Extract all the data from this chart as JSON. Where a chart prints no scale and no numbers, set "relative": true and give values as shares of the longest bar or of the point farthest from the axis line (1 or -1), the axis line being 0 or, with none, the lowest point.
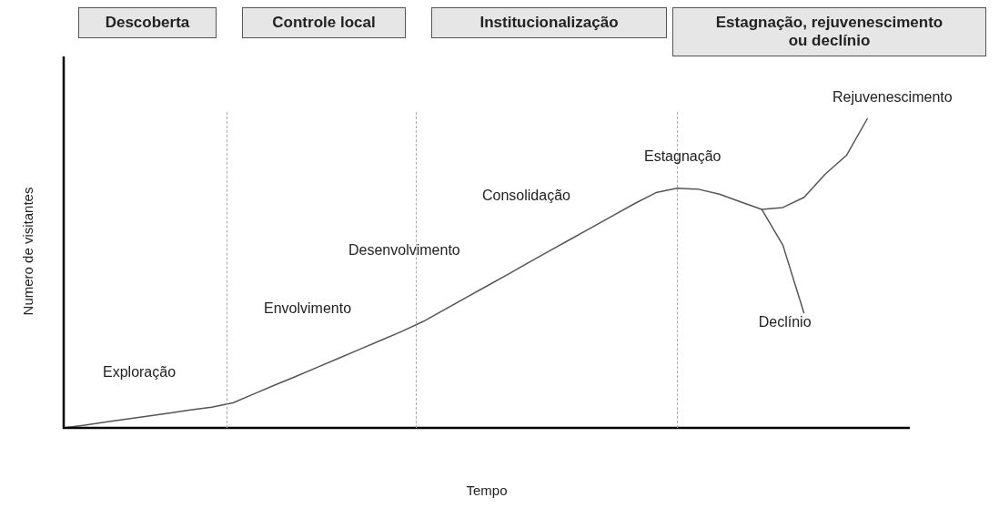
{
  "chart_data": {
    "type": "line",
    "relative": true,
    "xlabel": "Tempo",
    "ylabel": "Numero de visitantes",
    "marker": "none",
    "line_style": "solid",
    "categories": [
      null,
      null,
      null,
      null,
      null,
      null,
      null,
      null,
      null,
      null,
      null,
      null,
      null,
      null,
      null,
      null,
      null,
      null,
      null,
      null,
      null,
      null,
      null,
      null,
      null,
      null,
      null,
      null,
      null,
      null,
      null,
      null,
      null,
      null,
      null,
      null,
      null,
      null,
      null,
      null,
      null
    ],
    "series": [
      {
        "color": "#555555",
        "values": [
          0,
          0.009,
          0.019,
          0.029,
          0.038,
          0.048,
          0.058,
          0.067,
          0.081,
          0.11,
          0.139,
          0.167,
          0.196,
          0.225,
          0.254,
          0.283,
          0.312,
          0.344,
          0.382,
          0.42,
          0.458,
          0.496,
          0.535,
          0.573,
          0.611,
          0.649,
          0.687,
          0.725,
          0.76,
          0.774,
          0.771,
          0.755,
          0.73,
          0.706,
          0.712,
          0.745,
          0.82,
          0.88,
          1,
          null,
          null
        ]
      },
      {
        "name": "Declínio",
        "color": "#555555",
        "values": [
          null,
          null,
          null,
          null,
          null,
          null,
          null,
          null,
          null,
          null,
          null,
          null,
          null,
          null,
          null,
          null,
          null,
          null,
          null,
          null,
          null,
          null,
          null,
          null,
          null,
          null,
          null,
          null,
          null,
          null,
          null,
          null,
          null,
          0.706,
          0.59,
          0.37,
          null,
          null,
          null,
          null,
          null
        ]
      }
    ],
    "annotations": [
      "Descoberta",
      "Controle local",
      "Institucionalização",
      "Estagnação, rejuvenescimento ou declínio",
      "Exploração",
      "Envolvimento",
      "Desenvolvimento",
      "Consolidação",
      "Estagnação",
      "Rejuvenescimento"
    ]
  }
}
